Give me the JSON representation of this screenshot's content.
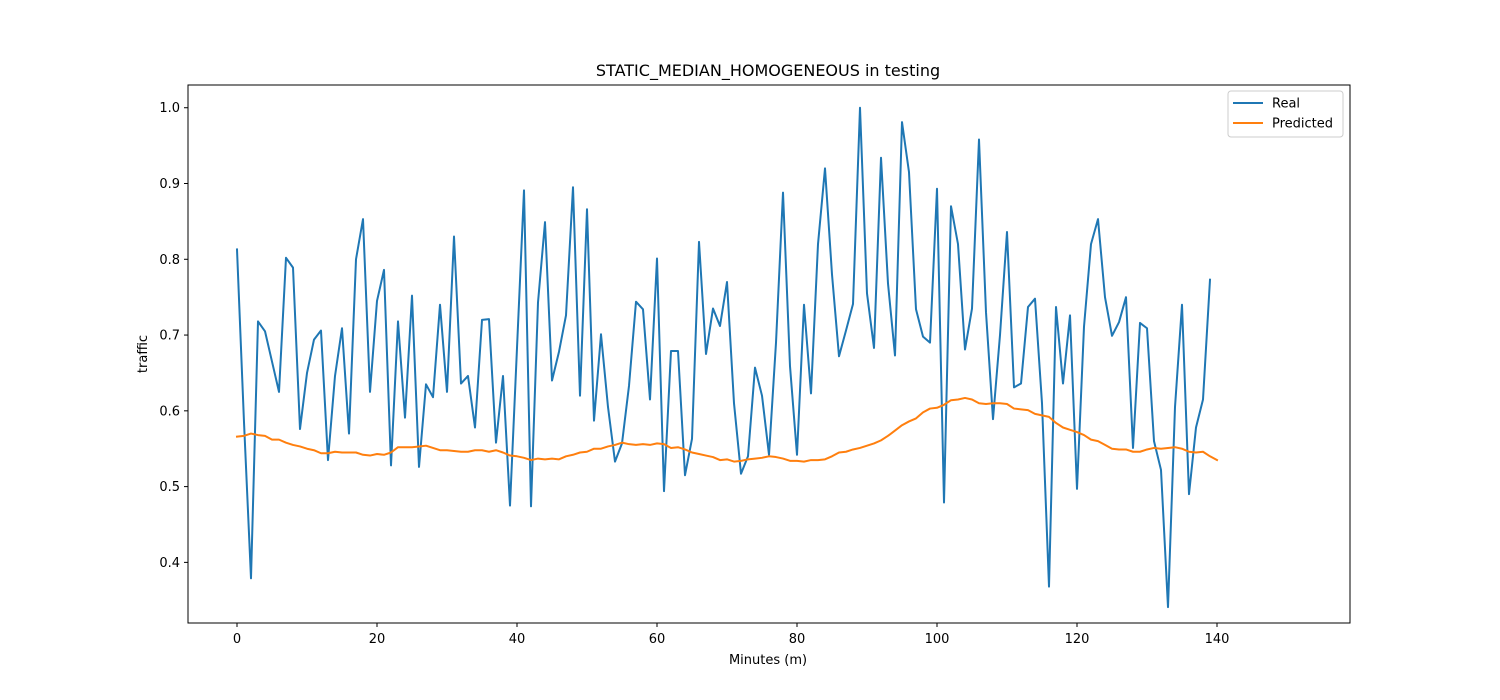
{
  "chart_data": {
    "type": "line",
    "title": "STATIC_MEDIAN_HOMOGENEOUS in testing",
    "xlabel": "Minutes (m)",
    "ylabel": "traffic",
    "xlim": [
      -7,
      159
    ],
    "ylim": [
      0.32,
      1.03
    ],
    "xticks": [
      0,
      20,
      40,
      60,
      80,
      100,
      120,
      140
    ],
    "yticks": [
      0.4,
      0.5,
      0.6,
      0.7,
      0.8,
      0.9,
      1.0
    ],
    "xtick_labels": [
      "0",
      "20",
      "40",
      "60",
      "80",
      "100",
      "120",
      "140"
    ],
    "ytick_labels": [
      "0.4",
      "0.5",
      "0.6",
      "0.7",
      "0.8",
      "0.9",
      "1.0"
    ],
    "grid": false,
    "legend_position": "top-right",
    "series": [
      {
        "name": "Real",
        "color": "#1f77b4",
        "values": [
          0.813,
          0.585,
          0.379,
          0.718,
          0.705,
          0.665,
          0.625,
          0.802,
          0.789,
          0.576,
          0.65,
          0.694,
          0.706,
          0.535,
          0.646,
          0.709,
          0.57,
          0.8,
          0.853,
          0.625,
          0.745,
          0.786,
          0.528,
          0.718,
          0.591,
          0.752,
          0.526,
          0.635,
          0.618,
          0.74,
          0.625,
          0.83,
          0.636,
          0.646,
          0.578,
          0.72,
          0.721,
          0.558,
          0.646,
          0.475,
          0.683,
          0.891,
          0.474,
          0.743,
          0.849,
          0.64,
          0.678,
          0.726,
          0.895,
          0.62,
          0.866,
          0.587,
          0.701,
          0.605,
          0.533,
          0.557,
          0.633,
          0.744,
          0.734,
          0.615,
          0.801,
          0.494,
          0.679,
          0.679,
          0.515,
          0.563,
          0.823,
          0.675,
          0.735,
          0.712,
          0.77,
          0.61,
          0.517,
          0.54,
          0.657,
          0.62,
          0.542,
          0.69,
          0.888,
          0.659,
          0.542,
          0.74,
          0.623,
          0.82,
          0.92,
          0.78,
          0.672,
          0.706,
          0.741,
          1.0,
          0.755,
          0.683,
          0.934,
          0.768,
          0.673,
          0.981,
          0.915,
          0.734,
          0.698,
          0.69,
          0.893,
          0.479,
          0.87,
          0.82,
          0.681,
          0.735,
          0.958,
          0.73,
          0.589,
          0.7,
          0.836,
          0.631,
          0.636,
          0.737,
          0.748,
          0.61,
          0.368,
          0.737,
          0.636,
          0.726,
          0.497,
          0.711,
          0.82,
          0.853,
          0.75,
          0.699,
          0.717,
          0.75,
          0.551,
          0.716,
          0.709,
          0.56,
          0.522,
          0.341,
          0.605,
          0.74,
          0.49,
          0.578,
          0.615,
          0.773
        ]
      },
      {
        "name": "Predicted",
        "color": "#ff7f0e",
        "values": [
          0.566,
          0.567,
          0.57,
          0.568,
          0.567,
          0.562,
          0.562,
          0.558,
          0.555,
          0.553,
          0.55,
          0.548,
          0.544,
          0.544,
          0.546,
          0.545,
          0.545,
          0.545,
          0.542,
          0.541,
          0.543,
          0.542,
          0.545,
          0.552,
          0.552,
          0.552,
          0.553,
          0.554,
          0.551,
          0.548,
          0.548,
          0.547,
          0.546,
          0.546,
          0.548,
          0.548,
          0.546,
          0.548,
          0.545,
          0.541,
          0.54,
          0.538,
          0.535,
          0.537,
          0.536,
          0.537,
          0.536,
          0.54,
          0.542,
          0.545,
          0.546,
          0.55,
          0.55,
          0.553,
          0.555,
          0.558,
          0.556,
          0.555,
          0.556,
          0.555,
          0.557,
          0.556,
          0.551,
          0.552,
          0.549,
          0.545,
          0.543,
          0.541,
          0.539,
          0.535,
          0.536,
          0.533,
          0.534,
          0.536,
          0.537,
          0.538,
          0.54,
          0.539,
          0.537,
          0.534,
          0.534,
          0.533,
          0.535,
          0.535,
          0.536,
          0.54,
          0.545,
          0.546,
          0.549,
          0.551,
          0.554,
          0.557,
          0.561,
          0.567,
          0.574,
          0.581,
          0.586,
          0.59,
          0.598,
          0.603,
          0.604,
          0.608,
          0.614,
          0.615,
          0.617,
          0.615,
          0.61,
          0.609,
          0.61,
          0.61,
          0.609,
          0.603,
          0.602,
          0.601,
          0.596,
          0.594,
          0.592,
          0.584,
          0.578,
          0.575,
          0.572,
          0.568,
          0.562,
          0.56,
          0.555,
          0.55,
          0.549,
          0.549,
          0.546,
          0.546,
          0.549,
          0.551,
          0.55,
          0.551,
          0.552,
          0.55,
          0.546,
          0.545,
          0.546,
          0.54,
          0.535
        ]
      }
    ]
  }
}
